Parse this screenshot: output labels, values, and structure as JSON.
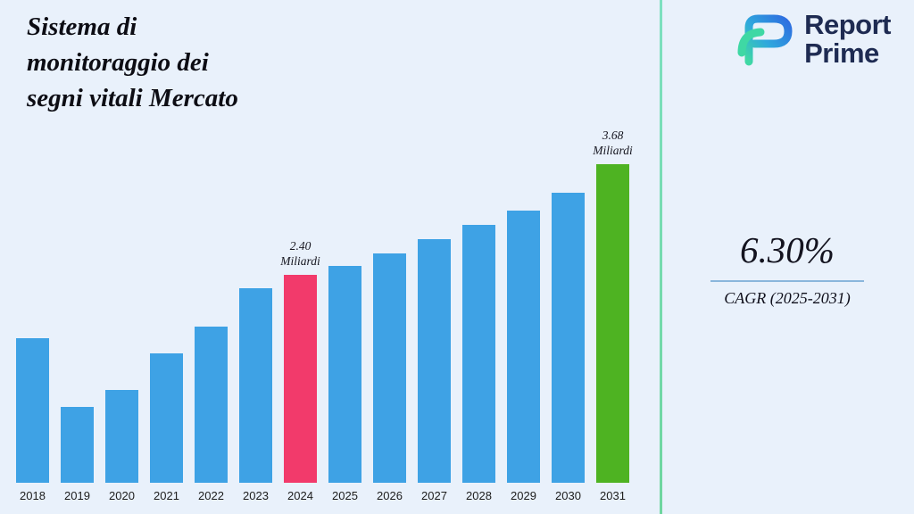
{
  "title": "Sistema di\nmonitoraggio dei\nsegni vitali Mercato",
  "logo": {
    "name_line1": "Report",
    "name_line2": "Prime"
  },
  "stats": {
    "cagr_value": "6.30%",
    "cagr_label": "CAGR (2025-2031)"
  },
  "colors": {
    "background": "#e9f1fb",
    "bar_default": "#3ea2e5",
    "bar_highlight": "#f23a6b",
    "bar_final": "#4eb322",
    "divider": "#7ee0c0",
    "underline": "#8ab6dc",
    "logo_text": "#1e2b52"
  },
  "chart_data": {
    "type": "bar",
    "title": "Sistema di monitoraggio dei segni vitali Mercato",
    "unit": "Miliardi",
    "xlabel": "",
    "ylabel": "",
    "grid": false,
    "legend": null,
    "ylim": [
      0,
      4
    ],
    "categories": [
      "2018",
      "2019",
      "2020",
      "2021",
      "2022",
      "2023",
      "2024",
      "2025",
      "2026",
      "2027",
      "2028",
      "2029",
      "2030",
      "2031"
    ],
    "values": [
      1.67,
      0.88,
      1.07,
      1.49,
      1.8,
      2.25,
      2.4,
      2.5,
      2.65,
      2.81,
      2.98,
      3.14,
      3.35,
      3.68
    ],
    "annotations": [
      {
        "category": "2024",
        "text": "2.40\nMiliardi"
      },
      {
        "category": "2031",
        "text": "3.68\nMiliardi"
      }
    ],
    "highlight_categories": {
      "2024": "bar_highlight",
      "2031": "bar_final"
    }
  }
}
